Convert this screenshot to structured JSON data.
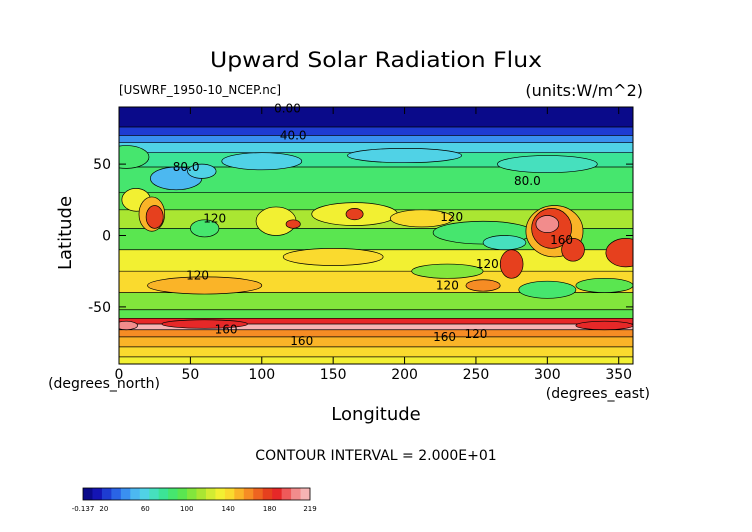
{
  "chart_data": {
    "type": "heatmap",
    "title": "Upward Solar Radiation Flux",
    "source_label": "[USWRF_1950-10_NCEP.nc]",
    "units_label": "(units:W/m^2)",
    "xlabel": "Longitude",
    "ylabel": "Latitude",
    "x_unit_label": "(degrees_east)",
    "y_unit_label": "(degrees_north)",
    "xlim": [
      0,
      360
    ],
    "ylim": [
      -90,
      90
    ],
    "x_ticks": [
      0,
      50,
      100,
      150,
      200,
      250,
      300,
      350
    ],
    "y_ticks": [
      -50,
      0,
      50
    ],
    "contour_interval_text": "CONTOUR INTERVAL = 2.000E+01",
    "contour_labels": [
      {
        "text": "0.00",
        "lon": 118,
        "lat": 89
      },
      {
        "text": "40.0",
        "lon": 122,
        "lat": 70
      },
      {
        "text": "80.0",
        "lon": 47,
        "lat": 48
      },
      {
        "text": "80.0",
        "lon": 286,
        "lat": 38
      },
      {
        "text": "120",
        "lon": 67,
        "lat": 12
      },
      {
        "text": "120",
        "lon": 233,
        "lat": 13
      },
      {
        "text": "160",
        "lon": 310,
        "lat": -3
      },
      {
        "text": "120",
        "lon": 258,
        "lat": -20
      },
      {
        "text": "120",
        "lon": 55,
        "lat": -28
      },
      {
        "text": "120",
        "lon": 230,
        "lat": -35
      },
      {
        "text": "160",
        "lon": 75,
        "lat": -66
      },
      {
        "text": "160",
        "lon": 128,
        "lat": -74
      },
      {
        "text": "160",
        "lon": 228,
        "lat": -71
      },
      {
        "text": "120",
        "lon": 250,
        "lat": -69
      }
    ],
    "colorbar": {
      "tick_labels": [
        "-0.137",
        "20",
        "60",
        "100",
        "140",
        "180",
        "219"
      ],
      "colors": [
        "#0a0a8a",
        "#1414b4",
        "#1e3cd2",
        "#2a64e6",
        "#3a90f0",
        "#4cb8f0",
        "#50d2e6",
        "#46e0be",
        "#3ce496",
        "#46e66e",
        "#5ae650",
        "#82e63c",
        "#aae632",
        "#d2ec32",
        "#f2f032",
        "#fada2e",
        "#fab428",
        "#f68c24",
        "#ee6420",
        "#e6401e",
        "#e62828",
        "#ee5a5a",
        "#f28c8c",
        "#f6b4b4"
      ],
      "min": -0.137,
      "max": 219
    },
    "bands": [
      {
        "lat_top": 90,
        "lat_bot": 76,
        "value": 0,
        "color": "#0a0a8a"
      },
      {
        "lat_top": 76,
        "lat_bot": 70,
        "value": 20,
        "color": "#1e3cd2"
      },
      {
        "lat_top": 70,
        "lat_bot": 65,
        "value": 40,
        "color": "#3a90f0"
      },
      {
        "lat_top": 65,
        "lat_bot": 58,
        "value": 60,
        "color": "#50d2e6"
      },
      {
        "lat_top": 58,
        "lat_bot": 48,
        "value": 70,
        "color": "#3ce496"
      },
      {
        "lat_top": 48,
        "lat_bot": 30,
        "value": 90,
        "color": "#46e66e"
      },
      {
        "lat_top": 30,
        "lat_bot": 18,
        "value": 110,
        "color": "#5ae650"
      },
      {
        "lat_top": 18,
        "lat_bot": 5,
        "value": 130,
        "color": "#aae632"
      },
      {
        "lat_top": 5,
        "lat_bot": -10,
        "value": 110,
        "color": "#5ae650"
      },
      {
        "lat_top": -10,
        "lat_bot": -25,
        "value": 140,
        "color": "#f2f032"
      },
      {
        "lat_top": -25,
        "lat_bot": -40,
        "value": 150,
        "color": "#fada2e"
      },
      {
        "lat_top": -40,
        "lat_bot": -52,
        "value": 120,
        "color": "#82e63c"
      },
      {
        "lat_top": -52,
        "lat_bot": -58,
        "value": 110,
        "color": "#5ae650"
      },
      {
        "lat_top": -58,
        "lat_bot": -62,
        "value": 200,
        "color": "#e62828"
      },
      {
        "lat_top": -62,
        "lat_bot": -66,
        "value": 220,
        "color": "#f6b4b4"
      },
      {
        "lat_top": -66,
        "lat_bot": -71,
        "value": 170,
        "color": "#f68c24"
      },
      {
        "lat_top": -71,
        "lat_bot": -78,
        "value": 150,
        "color": "#fab428"
      },
      {
        "lat_top": -78,
        "lat_bot": -85,
        "value": 140,
        "color": "#fada2e"
      },
      {
        "lat_top": -85,
        "lat_bot": -90,
        "value": 130,
        "color": "#f2f032"
      }
    ],
    "regions": [
      {
        "lon": 5,
        "lat": 55,
        "rx": 16,
        "ry": 8,
        "color": "#46e66e"
      },
      {
        "lon": 40,
        "lat": 40,
        "rx": 18,
        "ry": 8,
        "color": "#4cb8f0"
      },
      {
        "lon": 58,
        "lat": 45,
        "rx": 10,
        "ry": 5,
        "color": "#50d2e6"
      },
      {
        "lon": 100,
        "lat": 52,
        "rx": 28,
        "ry": 6,
        "color": "#50d2e6"
      },
      {
        "lon": 200,
        "lat": 56,
        "rx": 40,
        "ry": 5,
        "color": "#50d2e6"
      },
      {
        "lon": 300,
        "lat": 50,
        "rx": 35,
        "ry": 6,
        "color": "#46e0be"
      },
      {
        "lon": 12,
        "lat": 25,
        "rx": 10,
        "ry": 8,
        "color": "#f2f032"
      },
      {
        "lon": 23,
        "lat": 15,
        "rx": 9,
        "ry": 12,
        "color": "#fab428"
      },
      {
        "lon": 25,
        "lat": 13,
        "rx": 6,
        "ry": 8,
        "color": "#e6401e"
      },
      {
        "lon": 60,
        "lat": 5,
        "rx": 10,
        "ry": 6,
        "color": "#46e66e"
      },
      {
        "lon": 110,
        "lat": 10,
        "rx": 14,
        "ry": 10,
        "color": "#f2f032"
      },
      {
        "lon": 122,
        "lat": 8,
        "rx": 5,
        "ry": 3,
        "color": "#e6401e"
      },
      {
        "lon": 165,
        "lat": 15,
        "rx": 30,
        "ry": 8,
        "color": "#f2f032"
      },
      {
        "lon": 165,
        "lat": 15,
        "rx": 6,
        "ry": 4,
        "color": "#e6401e"
      },
      {
        "lon": 212,
        "lat": 12,
        "rx": 22,
        "ry": 6,
        "color": "#fada2e"
      },
      {
        "lon": 255,
        "lat": 2,
        "rx": 35,
        "ry": 8,
        "color": "#46e66e"
      },
      {
        "lon": 270,
        "lat": -5,
        "rx": 15,
        "ry": 5,
        "color": "#46e0be"
      },
      {
        "lon": 305,
        "lat": 3,
        "rx": 20,
        "ry": 18,
        "color": "#fab428"
      },
      {
        "lon": 303,
        "lat": 5,
        "rx": 14,
        "ry": 14,
        "color": "#e6401e"
      },
      {
        "lon": 300,
        "lat": 8,
        "rx": 8,
        "ry": 6,
        "color": "#f28c8c"
      },
      {
        "lon": 318,
        "lat": -10,
        "rx": 8,
        "ry": 8,
        "color": "#e6401e"
      },
      {
        "lon": 355,
        "lat": -12,
        "rx": 14,
        "ry": 10,
        "color": "#e6401e"
      },
      {
        "lon": 275,
        "lat": -20,
        "rx": 8,
        "ry": 10,
        "color": "#e6401e"
      },
      {
        "lon": 150,
        "lat": -15,
        "rx": 35,
        "ry": 6,
        "color": "#fada2e"
      },
      {
        "lon": 60,
        "lat": -35,
        "rx": 40,
        "ry": 6,
        "color": "#fab428"
      },
      {
        "lon": 230,
        "lat": -25,
        "rx": 25,
        "ry": 5,
        "color": "#82e63c"
      },
      {
        "lon": 255,
        "lat": -35,
        "rx": 12,
        "ry": 4,
        "color": "#f68c24"
      },
      {
        "lon": 300,
        "lat": -38,
        "rx": 20,
        "ry": 6,
        "color": "#46e66e"
      },
      {
        "lon": 340,
        "lat": -35,
        "rx": 20,
        "ry": 5,
        "color": "#5ae650"
      },
      {
        "lon": 340,
        "lat": -63,
        "rx": 20,
        "ry": 3,
        "color": "#e62828"
      },
      {
        "lon": 60,
        "lat": -62,
        "rx": 30,
        "ry": 3,
        "color": "#e62828"
      },
      {
        "lon": 5,
        "lat": -63,
        "rx": 8,
        "ry": 3,
        "color": "#f28c8c"
      }
    ]
  }
}
